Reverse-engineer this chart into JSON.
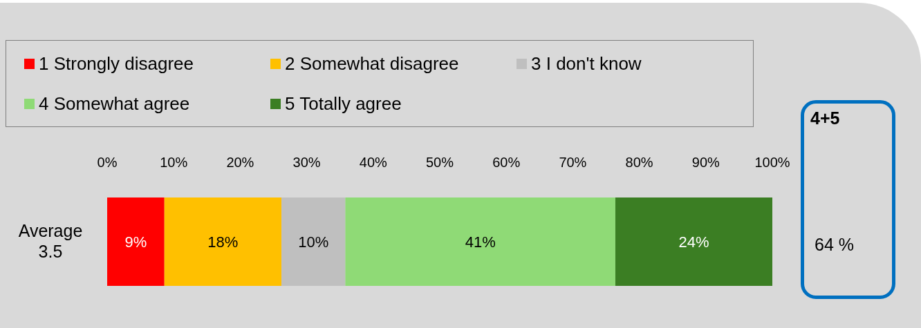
{
  "chart_data": {
    "type": "bar",
    "orientation": "horizontal",
    "stacked": true,
    "categories": [
      "Average 3.5"
    ],
    "series": [
      {
        "name": "1 Strongly disagree",
        "color": "#ff0000",
        "values": [
          8.6
        ],
        "value_labels": [
          "9%"
        ]
      },
      {
        "name": "2 Somewhat disagree",
        "color": "#ffc000",
        "values": [
          17.6
        ],
        "value_labels": [
          "18%"
        ]
      },
      {
        "name": "3 I don't know",
        "color": "#bfbfbf",
        "values": [
          9.6
        ],
        "value_labels": [
          "10%"
        ]
      },
      {
        "name": "4 Somewhat agree",
        "color": "#8fda76",
        "values": [
          40.6
        ],
        "value_labels": [
          "41%"
        ]
      },
      {
        "name": "5 Totally agree",
        "color": "#3b7e23",
        "values": [
          23.6
        ],
        "value_labels": [
          "24%"
        ]
      }
    ],
    "xlim": [
      0,
      100
    ],
    "xticks": [
      {
        "value": 0,
        "label": "0%"
      },
      {
        "value": 10,
        "label": "10%"
      },
      {
        "value": 20,
        "label": "20%"
      },
      {
        "value": 30,
        "label": "30%"
      },
      {
        "value": 40,
        "label": "40%"
      },
      {
        "value": 50,
        "label": "50%"
      },
      {
        "value": 60,
        "label": "60%"
      },
      {
        "value": 70,
        "label": "70%"
      },
      {
        "value": 80,
        "label": "80%"
      },
      {
        "value": 90,
        "label": "90%"
      },
      {
        "value": 100,
        "label": "100%"
      }
    ],
    "legend": "top",
    "annotations": [
      "4+5",
      "64 %"
    ]
  }
}
